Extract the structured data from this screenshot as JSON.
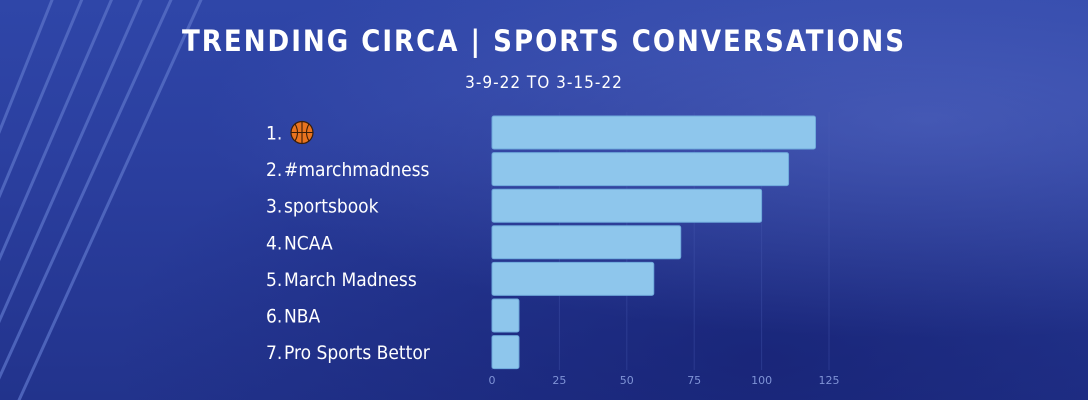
{
  "header": {
    "title": "TRENDING CIRCA | SPORTS CONVERSATIONS",
    "subtitle": "3-9-22  TO  3-15-22"
  },
  "colors": {
    "bar": "#8ec6ec",
    "bar_stroke": "#6fa9db",
    "text": "#ffffff",
    "tick": "#7f93d6",
    "grid": "#4a5db5"
  },
  "chart_data": {
    "type": "bar",
    "orientation": "horizontal",
    "categories": [
      "1.",
      "2.",
      "3.",
      "4.",
      "5.",
      "6.",
      "7."
    ],
    "labels": [
      "",
      "#marchmadness",
      "sportsbook",
      "NCAA",
      "March Madness",
      "NBA",
      "Pro Sports Bettor"
    ],
    "first_label_icon": "basketball-emoji-icon",
    "values": [
      120,
      110,
      100,
      70,
      60,
      10,
      10
    ],
    "xlim": [
      0,
      125
    ],
    "xticks": [
      0,
      25,
      50,
      75,
      100,
      125
    ],
    "title": "TRENDING CIRCA | SPORTS CONVERSATIONS",
    "subtitle": "3-9-22  TO  3-15-22",
    "grid": true,
    "legend": "none"
  }
}
